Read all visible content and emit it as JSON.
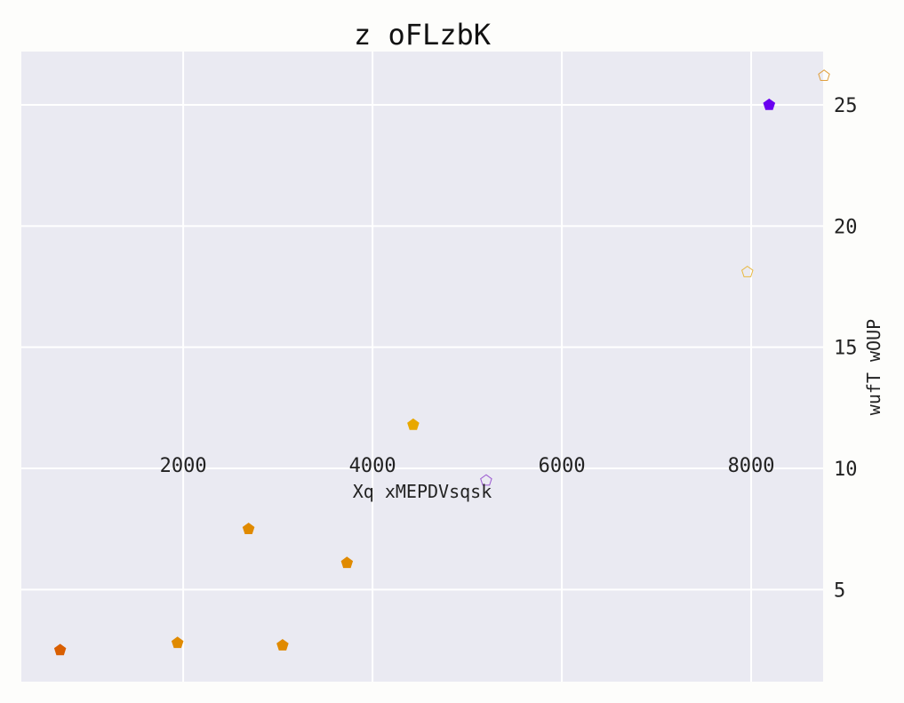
{
  "chart_data": {
    "type": "scatter",
    "title": "z oFLzbK",
    "xlabel": "Xq xMEPDVsqsk",
    "ylabel": "wufT wOUP",
    "xlim": [
      290,
      8760
    ],
    "ylim": [
      1.2,
      27.2
    ],
    "x_ticks": [
      2000,
      4000,
      6000,
      8000
    ],
    "y_ticks": [
      5,
      10,
      15,
      20,
      25
    ],
    "grid": true,
    "marker": "pentagon",
    "points": [
      {
        "x": 700,
        "y": 2.5,
        "color": "#d95f02",
        "filled": true
      },
      {
        "x": 1940,
        "y": 2.8,
        "color": "#e08a00",
        "filled": true
      },
      {
        "x": 2690,
        "y": 7.5,
        "color": "#e08a00",
        "filled": true
      },
      {
        "x": 3050,
        "y": 2.7,
        "color": "#e08a00",
        "filled": true
      },
      {
        "x": 3730,
        "y": 6.1,
        "color": "#e08a00",
        "filled": true
      },
      {
        "x": 4430,
        "y": 11.8,
        "color": "#e8a800",
        "filled": true
      },
      {
        "x": 5200,
        "y": 9.5,
        "color": "#9b59d0",
        "filled": false
      },
      {
        "x": 7960,
        "y": 18.1,
        "color": "#e8b840",
        "filled": false
      },
      {
        "x": 8190,
        "y": 25.0,
        "color": "#6a00f0",
        "filled": true
      },
      {
        "x": 8770,
        "y": 26.2,
        "color": "#e0a040",
        "filled": false
      }
    ]
  }
}
